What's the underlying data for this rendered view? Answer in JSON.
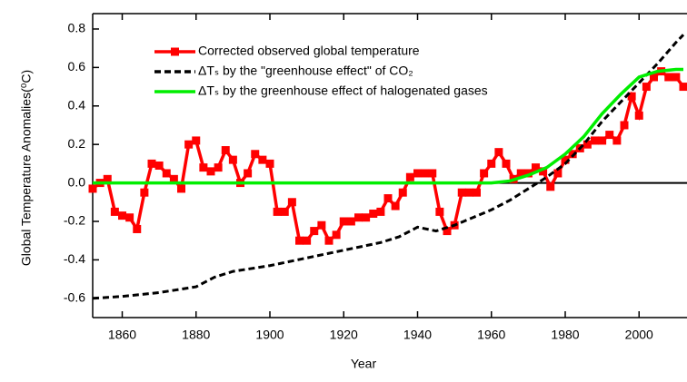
{
  "chart_data": {
    "type": "line",
    "xlabel": "Year",
    "ylabel": "Global Temperature Anomalies(⁰C)",
    "xlim": [
      1852,
      2012
    ],
    "xticks": [
      1860,
      1880,
      1900,
      1920,
      1940,
      1960,
      1980,
      2000
    ],
    "ylim": [
      -0.7,
      0.88
    ],
    "yticks": [
      {
        "value": -0.6,
        "label": "-0.6"
      },
      {
        "value": -0.4,
        "label": "-0.4"
      },
      {
        "value": -0.2,
        "label": "-0.2"
      },
      {
        "value": 0,
        "label": "0.0"
      },
      {
        "value": 0.2,
        "label": "0.2"
      },
      {
        "value": 0.4,
        "label": "0.4"
      },
      {
        "value": 0.6,
        "label": "0.6"
      },
      {
        "value": 0.8,
        "label": "0.8"
      }
    ],
    "series": [
      {
        "name": "Corrected observed global temperature",
        "color": "#ff0000",
        "style": "solid",
        "marker": "square",
        "x": [
          1852,
          1854,
          1856,
          1858,
          1860,
          1862,
          1864,
          1866,
          1868,
          1870,
          1872,
          1874,
          1876,
          1878,
          1880,
          1882,
          1884,
          1886,
          1888,
          1890,
          1892,
          1894,
          1896,
          1898,
          1900,
          1902,
          1904,
          1906,
          1908,
          1910,
          1912,
          1914,
          1916,
          1918,
          1920,
          1922,
          1924,
          1926,
          1928,
          1930,
          1932,
          1934,
          1936,
          1938,
          1940,
          1942,
          1944,
          1946,
          1948,
          1950,
          1952,
          1954,
          1956,
          1958,
          1960,
          1962,
          1964,
          1966,
          1968,
          1970,
          1972,
          1974,
          1976,
          1978,
          1980,
          1982,
          1984,
          1986,
          1988,
          1990,
          1992,
          1994,
          1996,
          1998,
          2000,
          2002,
          2004,
          2006,
          2008,
          2010,
          2012
        ],
        "values": [
          -0.03,
          0.0,
          0.02,
          -0.15,
          -0.17,
          -0.18,
          -0.24,
          -0.05,
          0.1,
          0.09,
          0.05,
          0.02,
          -0.03,
          0.2,
          0.22,
          0.08,
          0.06,
          0.08,
          0.17,
          0.12,
          0.0,
          0.05,
          0.15,
          0.12,
          0.1,
          -0.15,
          -0.15,
          -0.1,
          -0.3,
          -0.3,
          -0.25,
          -0.22,
          -0.3,
          -0.27,
          -0.2,
          -0.2,
          -0.18,
          -0.18,
          -0.16,
          -0.15,
          -0.08,
          -0.12,
          -0.05,
          0.03,
          0.05,
          0.05,
          0.05,
          -0.15,
          -0.25,
          -0.22,
          -0.05,
          -0.05,
          -0.05,
          0.05,
          0.1,
          0.16,
          0.1,
          0.02,
          0.05,
          0.05,
          0.08,
          0.06,
          -0.02,
          0.05,
          0.12,
          0.15,
          0.18,
          0.2,
          0.22,
          0.22,
          0.25,
          0.22,
          0.3,
          0.45,
          0.35,
          0.5,
          0.55,
          0.58,
          0.55,
          0.55,
          0.5
        ]
      },
      {
        "name": "ΔTₛ by the \"greenhouse effect\" of CO₂",
        "color": "#000000",
        "style": "dashed",
        "x": [
          1852,
          1860,
          1870,
          1880,
          1885,
          1890,
          1900,
          1910,
          1920,
          1930,
          1935,
          1940,
          1945,
          1950,
          1955,
          1960,
          1965,
          1970,
          1975,
          1980,
          1985,
          1990,
          1995,
          2000,
          2005,
          2010,
          2012
        ],
        "values": [
          -0.6,
          -0.59,
          -0.57,
          -0.54,
          -0.49,
          -0.46,
          -0.43,
          -0.39,
          -0.35,
          -0.31,
          -0.28,
          -0.23,
          -0.25,
          -0.22,
          -0.18,
          -0.14,
          -0.09,
          -0.03,
          0.03,
          0.1,
          0.2,
          0.32,
          0.42,
          0.52,
          0.62,
          0.73,
          0.77
        ]
      },
      {
        "name": "ΔTₛ by the greenhouse effect of halogenated gases",
        "color": "#00ee00",
        "style": "solid",
        "x": [
          1852,
          1960,
          1965,
          1970,
          1975,
          1980,
          1985,
          1990,
          1995,
          2000,
          2005,
          2010,
          2012
        ],
        "values": [
          0,
          0,
          0.01,
          0.04,
          0.08,
          0.15,
          0.24,
          0.36,
          0.46,
          0.55,
          0.58,
          0.59,
          0.59
        ]
      }
    ]
  }
}
